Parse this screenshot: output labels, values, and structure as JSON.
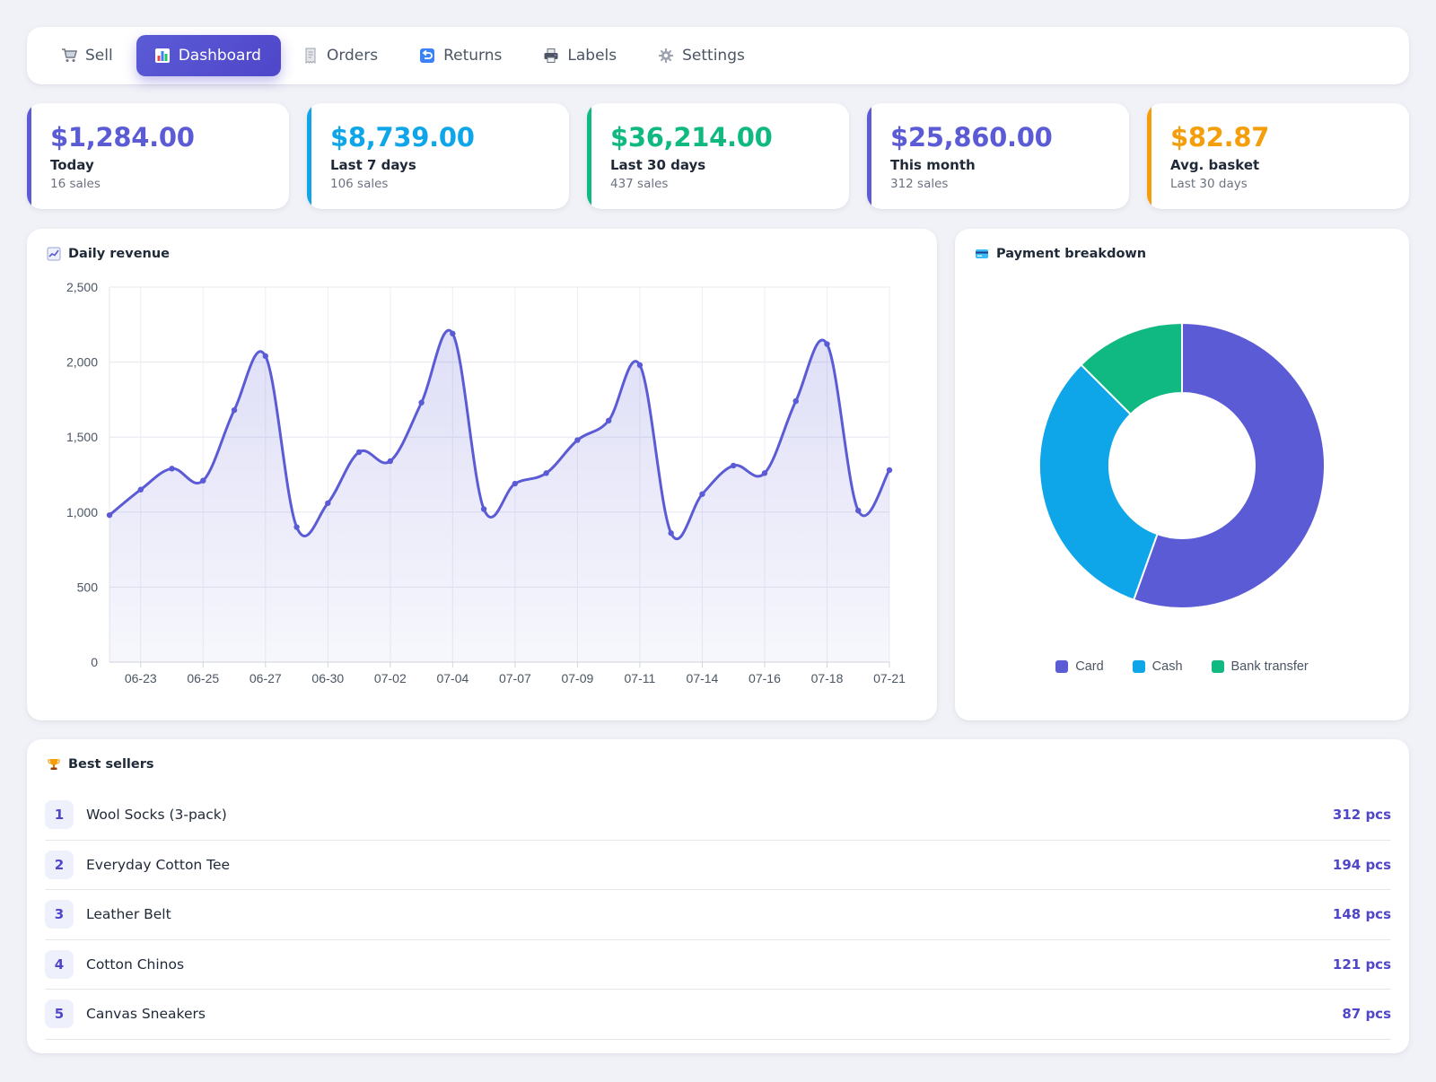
{
  "nav": {
    "items": [
      {
        "label": "Sell",
        "icon": "cart-icon"
      },
      {
        "label": "Dashboard",
        "icon": "bar-chart-icon",
        "active": true
      },
      {
        "label": "Orders",
        "icon": "receipt-icon"
      },
      {
        "label": "Returns",
        "icon": "return-arrow-icon"
      },
      {
        "label": "Labels",
        "icon": "printer-icon"
      },
      {
        "label": "Settings",
        "icon": "gear-icon"
      }
    ]
  },
  "stats": [
    {
      "amount": "$1,284.00",
      "label": "Today",
      "sub": "16 sales",
      "color": "#5b5bd6"
    },
    {
      "amount": "$8,739.00",
      "label": "Last 7 days",
      "sub": "106 sales",
      "color": "#0ea5e9"
    },
    {
      "amount": "$36,214.00",
      "label": "Last 30 days",
      "sub": "437 sales",
      "color": "#10b981"
    },
    {
      "amount": "$25,860.00",
      "label": "This month",
      "sub": "312 sales",
      "color": "#5b5bd6"
    },
    {
      "amount": "$82.87",
      "label": "Avg. basket",
      "sub": "Last 30 days",
      "color": "#f59e0b"
    }
  ],
  "revenue": {
    "title": "Daily revenue",
    "icon": "line-chart-icon"
  },
  "payment": {
    "title": "Payment breakdown",
    "icon": "credit-card-icon"
  },
  "best_sellers": {
    "title": "Best sellers",
    "icon": "trophy-icon",
    "items": [
      {
        "rank": "1",
        "name": "Wool Socks (3-pack)",
        "qty": "312 pcs"
      },
      {
        "rank": "2",
        "name": "Everyday Cotton Tee",
        "qty": "194 pcs"
      },
      {
        "rank": "3",
        "name": "Leather Belt",
        "qty": "148 pcs"
      },
      {
        "rank": "4",
        "name": "Cotton Chinos",
        "qty": "121 pcs"
      },
      {
        "rank": "5",
        "name": "Canvas Sneakers",
        "qty": "87 pcs"
      }
    ]
  },
  "chart_data": [
    {
      "type": "area",
      "title": "Daily revenue",
      "xlabel": "",
      "ylabel": "",
      "ylim": [
        0,
        2500
      ],
      "yticks": [
        0,
        500,
        1000,
        1500,
        2000,
        2500
      ],
      "yticklabels": [
        "0",
        "500",
        "1,000",
        "1,500",
        "2,000",
        "2,500"
      ],
      "xticklabels": [
        "06-23",
        "06-25",
        "06-27",
        "06-30",
        "07-02",
        "07-04",
        "07-07",
        "07-09",
        "07-11",
        "07-14",
        "07-16",
        "07-18",
        "07-21"
      ],
      "grid": true,
      "line_color": "#5b5bd6",
      "fill_color": "#5b5bd6",
      "x": [
        "06-22",
        "06-23",
        "06-24",
        "06-25",
        "06-26",
        "06-27",
        "06-28",
        "06-30",
        "07-01",
        "07-02",
        "07-03",
        "07-04",
        "07-05",
        "07-07",
        "07-08",
        "07-09",
        "07-10",
        "07-11",
        "07-12",
        "07-14",
        "07-15",
        "07-16",
        "07-17",
        "07-18",
        "07-19",
        "07-21"
      ],
      "values": [
        980,
        1150,
        1290,
        1210,
        1680,
        2040,
        900,
        1060,
        1400,
        1340,
        1730,
        2190,
        1020,
        1190,
        1260,
        1480,
        1610,
        1980,
        860,
        1120,
        1310,
        1260,
        1740,
        2120,
        1010,
        1280
      ]
    },
    {
      "type": "pie",
      "title": "Payment breakdown",
      "donut": true,
      "legend": "bottom",
      "categories": [
        "Card",
        "Cash",
        "Bank transfer"
      ],
      "values": [
        55.5,
        32,
        12.5
      ],
      "colors": [
        "#5b5bd6",
        "#0ea5e9",
        "#10b981"
      ]
    }
  ]
}
